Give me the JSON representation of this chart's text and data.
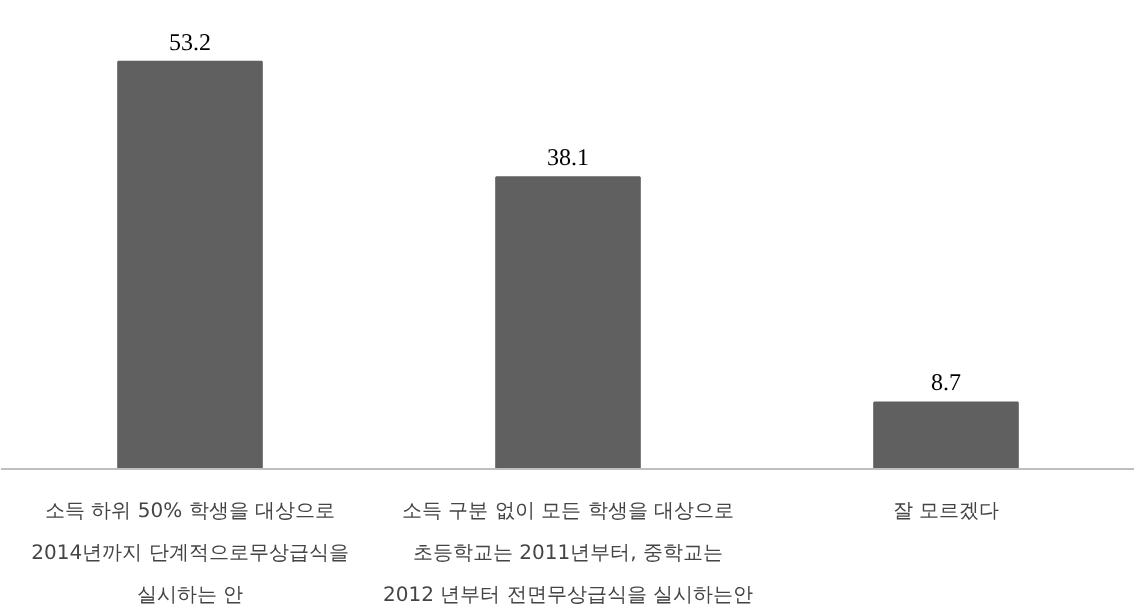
{
  "chart_data": {
    "type": "bar",
    "categories": [
      "소득 하위 50% 학생을 대상으로\n2014년까지 단계적으로무상급식을\n실시하는 안",
      "소득 구분 없이 모든 학생을 대상으로\n초등학교는 2011년부터, 중학교는\n2012 년부터 전면무상급식을 실시하는안",
      "잘 모르겠다"
    ],
    "values": [
      53.2,
      38.1,
      8.7
    ],
    "color": "#606060",
    "data_labels": true,
    "grid": false
  }
}
